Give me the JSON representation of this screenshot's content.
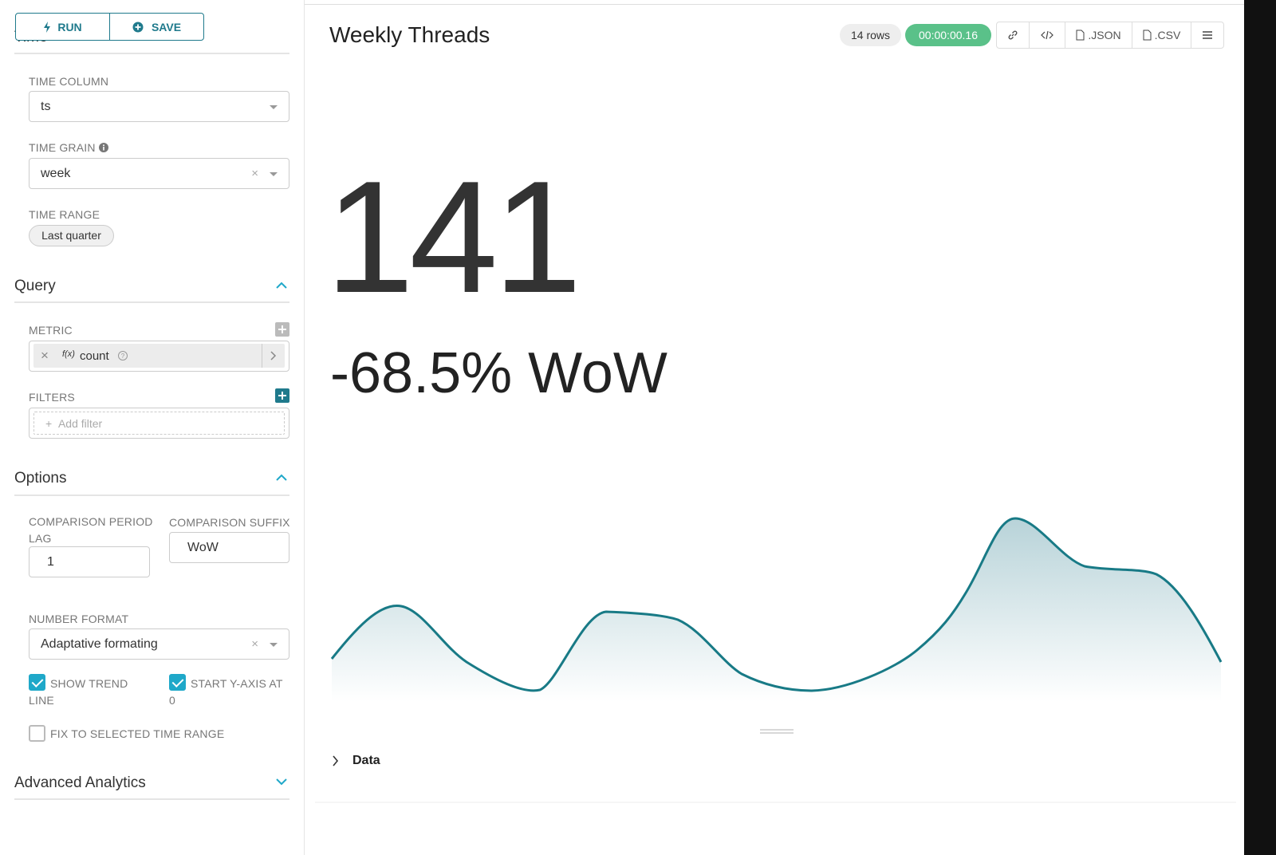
{
  "toolbar": {
    "run": "RUN",
    "save": "SAVE"
  },
  "time_section": {
    "title": "Time",
    "time_column": {
      "label": "TIME COLUMN",
      "value": "ts"
    },
    "time_grain": {
      "label": "TIME GRAIN",
      "value": "week"
    },
    "time_range": {
      "label": "TIME RANGE",
      "value": "Last quarter"
    }
  },
  "query_section": {
    "title": "Query",
    "metric": {
      "label": "METRIC",
      "fn": "f(x)",
      "value": "count"
    },
    "filters": {
      "label": "FILTERS",
      "placeholder": "Add filter"
    }
  },
  "options_section": {
    "title": "Options",
    "comparison_lag": {
      "label": "COMPARISON PERIOD LAG",
      "value": "1"
    },
    "comparison_suffix": {
      "label": "COMPARISON SUFFIX",
      "value": "WoW"
    },
    "number_format": {
      "label": "NUMBER FORMAT",
      "value": "Adaptative formating"
    },
    "show_trend_line": {
      "label": "SHOW TREND LINE",
      "checked": true
    },
    "start_y_axis_at_0": {
      "label": "START Y-AXIS AT 0",
      "checked": true
    },
    "fix_to_time_range": {
      "label": "FIX TO SELECTED TIME RANGE",
      "checked": false
    }
  },
  "advanced_section": {
    "title": "Advanced Analytics"
  },
  "header": {
    "title": "Weekly Threads",
    "row_count": "14 rows",
    "duration": "00:00:00.16",
    "json": ".JSON",
    "csv": ".CSV"
  },
  "big_number": {
    "value": 141,
    "subheader": "-68.5% WoW"
  },
  "data_panel": {
    "title": "Data"
  }
}
